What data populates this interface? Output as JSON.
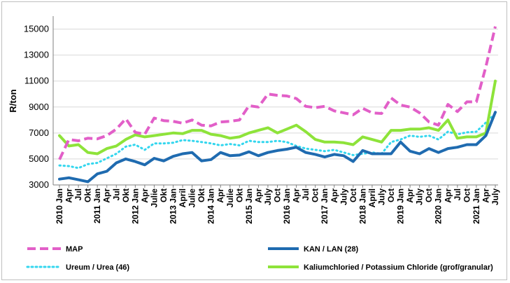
{
  "chart_data": {
    "type": "line",
    "ylabel": "R/ton",
    "ylim": [
      3000,
      16000
    ],
    "yticks": [
      3000,
      5000,
      7000,
      9000,
      11000,
      13000,
      15000
    ],
    "grid": "horizontal",
    "legend_position": "bottom",
    "x_labels": [
      "2010 Jan",
      "Apr",
      "Jul",
      "Okt",
      "2011 Jan",
      "Apr",
      "Jul",
      "Okt",
      "2012 Jan",
      "Apr",
      "Julie",
      "Okt",
      "2013 Jan",
      "April",
      "Julie",
      "Okt",
      "2014 Jan",
      "Apr",
      "Julie",
      "Okt",
      "2015 Jan",
      "Apr",
      "July",
      "Oct",
      "2016 Jan",
      "Apr",
      "Jul",
      "Oct",
      "2017 Jan",
      "Apr",
      "July",
      "Oct",
      "2018 Jan",
      "April",
      "July",
      "Oct",
      "2019 Jan",
      "Apr",
      "July",
      "Oct",
      "2020 Jan",
      "Apr",
      "Jul",
      "Oct",
      "2021 Jan",
      "Apr",
      "July"
    ],
    "series": [
      {
        "name": "MAP",
        "color": "#e25fc8",
        "style": "dashed",
        "points": [
          [
            0,
            4950
          ],
          [
            1,
            6500
          ],
          [
            2,
            6400
          ],
          [
            3,
            6600
          ],
          [
            4,
            6550
          ],
          [
            5,
            6800
          ],
          [
            6,
            7300
          ],
          [
            7,
            8100
          ],
          [
            8,
            7050
          ],
          [
            9,
            6900
          ],
          [
            10,
            8150
          ],
          [
            11,
            7950
          ],
          [
            12,
            7900
          ],
          [
            13,
            7750
          ],
          [
            14,
            8000
          ],
          [
            15,
            7600
          ],
          [
            16,
            7550
          ],
          [
            17,
            7850
          ],
          [
            18,
            7900
          ],
          [
            19,
            8000
          ],
          [
            20,
            9100
          ],
          [
            21,
            9000
          ],
          [
            22,
            10000
          ],
          [
            23,
            9900
          ],
          [
            24,
            9850
          ],
          [
            25,
            9650
          ],
          [
            26,
            9050
          ],
          [
            27,
            8950
          ],
          [
            28,
            9050
          ],
          [
            29,
            8700
          ],
          [
            30,
            8550
          ],
          [
            31,
            8400
          ],
          [
            32,
            8900
          ],
          [
            33,
            8550
          ],
          [
            34,
            8500
          ],
          [
            35,
            9700
          ],
          [
            36,
            9150
          ],
          [
            37,
            9000
          ],
          [
            38,
            8550
          ],
          [
            39,
            7850
          ],
          [
            40,
            7600
          ],
          [
            41,
            9200
          ],
          [
            42,
            8650
          ],
          [
            43,
            9400
          ],
          [
            44,
            9400
          ],
          [
            45,
            12100
          ],
          [
            46,
            15200
          ]
        ]
      },
      {
        "name": "KAN / LAN (28)",
        "color": "#1f6bb0",
        "style": "solid",
        "points": [
          [
            0,
            3450
          ],
          [
            1,
            3550
          ],
          [
            2,
            3400
          ],
          [
            3,
            3250
          ],
          [
            4,
            3850
          ],
          [
            5,
            4050
          ],
          [
            6,
            4700
          ],
          [
            7,
            5000
          ],
          [
            8,
            4800
          ],
          [
            9,
            4550
          ],
          [
            10,
            5050
          ],
          [
            11,
            4850
          ],
          [
            12,
            5200
          ],
          [
            13,
            5400
          ],
          [
            14,
            5500
          ],
          [
            15,
            4850
          ],
          [
            16,
            4950
          ],
          [
            17,
            5500
          ],
          [
            18,
            5250
          ],
          [
            19,
            5300
          ],
          [
            20,
            5550
          ],
          [
            21,
            5250
          ],
          [
            22,
            5500
          ],
          [
            23,
            5650
          ],
          [
            24,
            5750
          ],
          [
            25,
            5900
          ],
          [
            26,
            5500
          ],
          [
            27,
            5350
          ],
          [
            28,
            5150
          ],
          [
            29,
            5350
          ],
          [
            30,
            5250
          ],
          [
            31,
            4800
          ],
          [
            32,
            5650
          ],
          [
            33,
            5400
          ],
          [
            34,
            5400
          ],
          [
            35,
            5400
          ],
          [
            36,
            6300
          ],
          [
            37,
            5600
          ],
          [
            38,
            5400
          ],
          [
            39,
            5800
          ],
          [
            40,
            5500
          ],
          [
            41,
            5800
          ],
          [
            42,
            5900
          ],
          [
            43,
            6100
          ],
          [
            44,
            6100
          ],
          [
            45,
            6800
          ],
          [
            46,
            8600
          ]
        ]
      },
      {
        "name": "Ureum / Urea (46)",
        "color": "#33d6ee",
        "style": "dotted",
        "points": [
          [
            0,
            4500
          ],
          [
            1,
            4450
          ],
          [
            2,
            4300
          ],
          [
            3,
            4600
          ],
          [
            4,
            4700
          ],
          [
            5,
            5050
          ],
          [
            6,
            5400
          ],
          [
            7,
            5950
          ],
          [
            8,
            6100
          ],
          [
            9,
            5700
          ],
          [
            10,
            6200
          ],
          [
            11,
            6200
          ],
          [
            12,
            6250
          ],
          [
            13,
            6450
          ],
          [
            14,
            6400
          ],
          [
            15,
            6300
          ],
          [
            16,
            6200
          ],
          [
            17,
            6050
          ],
          [
            18,
            6150
          ],
          [
            19,
            6050
          ],
          [
            20,
            6400
          ],
          [
            21,
            6300
          ],
          [
            22,
            6300
          ],
          [
            23,
            6400
          ],
          [
            24,
            6300
          ],
          [
            25,
            6000
          ],
          [
            26,
            5800
          ],
          [
            27,
            5700
          ],
          [
            28,
            5600
          ],
          [
            29,
            5700
          ],
          [
            30,
            5500
          ],
          [
            31,
            5300
          ],
          [
            32,
            5400
          ],
          [
            33,
            5500
          ],
          [
            34,
            5400
          ],
          [
            35,
            6300
          ],
          [
            36,
            6500
          ],
          [
            37,
            6800
          ],
          [
            38,
            6700
          ],
          [
            39,
            6800
          ],
          [
            40,
            6500
          ],
          [
            41,
            7100
          ],
          [
            42,
            6900
          ],
          [
            43,
            7050
          ],
          [
            44,
            7100
          ],
          [
            45,
            7800
          ],
          [
            46,
            8500
          ]
        ]
      },
      {
        "name": "Kaliumchloried / Potassium Chloride (grof/granular)",
        "color": "#8ee33a",
        "style": "solid",
        "points": [
          [
            0,
            6800
          ],
          [
            1,
            6000
          ],
          [
            2,
            6100
          ],
          [
            3,
            5500
          ],
          [
            4,
            5400
          ],
          [
            5,
            5800
          ],
          [
            6,
            6000
          ],
          [
            7,
            6500
          ],
          [
            8,
            6850
          ],
          [
            9,
            6700
          ],
          [
            10,
            6800
          ],
          [
            11,
            6900
          ],
          [
            12,
            7000
          ],
          [
            13,
            6950
          ],
          [
            14,
            7200
          ],
          [
            15,
            7200
          ],
          [
            16,
            6900
          ],
          [
            17,
            6800
          ],
          [
            18,
            6600
          ],
          [
            19,
            6700
          ],
          [
            20,
            7000
          ],
          [
            21,
            7200
          ],
          [
            22,
            7400
          ],
          [
            23,
            7000
          ],
          [
            24,
            7300
          ],
          [
            25,
            7600
          ],
          [
            26,
            7100
          ],
          [
            27,
            6500
          ],
          [
            28,
            6300
          ],
          [
            29,
            6300
          ],
          [
            30,
            6250
          ],
          [
            31,
            6100
          ],
          [
            32,
            6700
          ],
          [
            33,
            6500
          ],
          [
            34,
            6300
          ],
          [
            35,
            7200
          ],
          [
            36,
            7200
          ],
          [
            37,
            7300
          ],
          [
            38,
            7300
          ],
          [
            39,
            7400
          ],
          [
            40,
            7200
          ],
          [
            41,
            8000
          ],
          [
            42,
            6600
          ],
          [
            43,
            6700
          ],
          [
            44,
            6700
          ],
          [
            45,
            7000
          ],
          [
            46,
            11000
          ]
        ]
      }
    ]
  }
}
